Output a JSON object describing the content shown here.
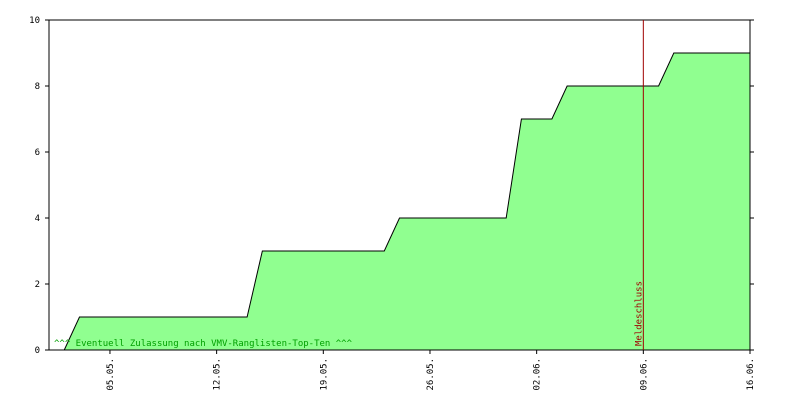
{
  "chart_data": {
    "type": "area",
    "x": [
      1,
      2,
      13,
      14,
      22,
      23,
      30,
      31,
      33,
      34,
      40,
      41,
      46
    ],
    "values": [
      0,
      1,
      1,
      3,
      3,
      4,
      4,
      7,
      7,
      8,
      8,
      9,
      9
    ],
    "color": "#90ff90",
    "line_color": "#000000",
    "xlim": [
      0,
      46
    ],
    "xticks": [
      {
        "value": 4,
        "label": "05.05."
      },
      {
        "value": 11,
        "label": "12.05."
      },
      {
        "value": 18,
        "label": "19.05."
      },
      {
        "value": 25,
        "label": "26.05."
      },
      {
        "value": 32,
        "label": "02.06."
      },
      {
        "value": 39,
        "label": "09.06."
      },
      {
        "value": 46,
        "label": "16.06."
      }
    ],
    "ylim": [
      0,
      10
    ],
    "yticks": [
      0,
      2,
      4,
      6,
      8,
      10
    ],
    "marker": {
      "x": 39,
      "label": "Meldeschluss",
      "color": "#a00000"
    },
    "annotation": "^^^ Eventuell Zulassung nach VMV-Ranglisten-Top-Ten ^^^"
  }
}
